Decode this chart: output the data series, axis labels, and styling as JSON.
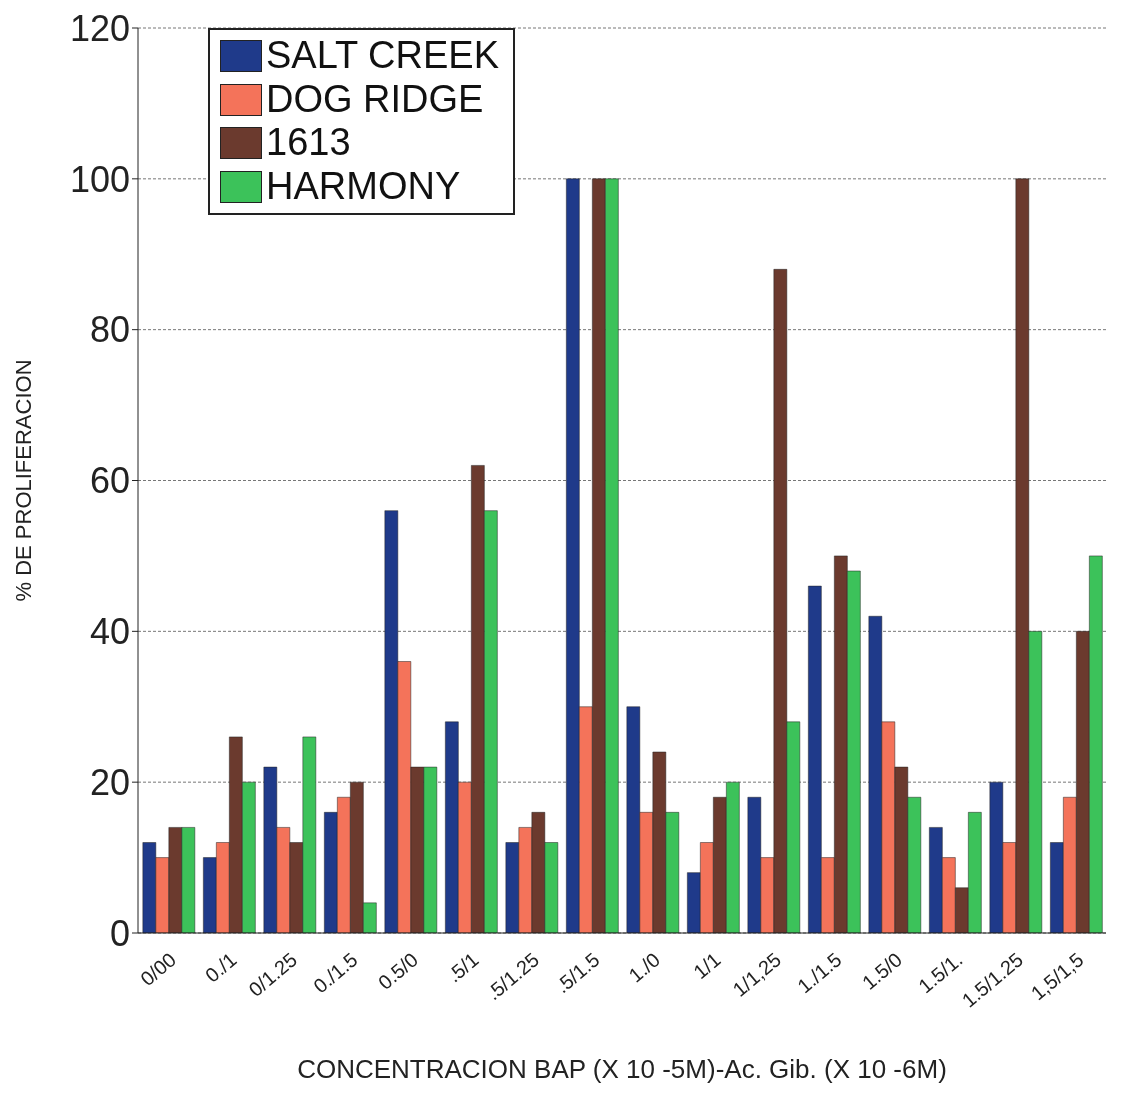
{
  "chart_data": {
    "type": "bar",
    "xlabel": "CONCENTRACION BAP (X 10 -5M)-Ac. Gib. (X 10 -6M)",
    "ylabel": "% DE PROLIFERACION",
    "categories": [
      "0/00",
      "0./1",
      "0/1.25",
      "0./1.5",
      "0.5/0",
      ".5/1",
      ".5/1.25",
      ".5/1.5",
      "1./0",
      "1/1",
      "1/1,25",
      "1./1.5",
      "1.5/0",
      "1.5/1.",
      "1.5/1.25",
      "1,5/1,5"
    ],
    "series": [
      {
        "name": "SALT CREEK",
        "color": "#1f3a8a",
        "values": [
          12,
          10,
          22,
          16,
          56,
          28,
          12,
          100,
          30,
          8,
          18,
          46,
          42,
          14,
          20,
          12
        ]
      },
      {
        "name": "DOG RIDGE",
        "color": "#f4735a",
        "values": [
          10,
          12,
          14,
          18,
          36,
          20,
          14,
          30,
          16,
          12,
          10,
          10,
          28,
          10,
          12,
          18
        ]
      },
      {
        "name": "1613",
        "color": "#6b3a2e",
        "values": [
          14,
          26,
          12,
          20,
          22,
          62,
          16,
          100,
          24,
          18,
          88,
          50,
          22,
          6,
          100,
          40
        ]
      },
      {
        "name": "HARMONY",
        "color": "#3cc25a",
        "values": [
          14,
          20,
          26,
          4,
          22,
          56,
          12,
          100,
          16,
          20,
          28,
          48,
          18,
          16,
          40,
          50
        ]
      }
    ],
    "ylim": [
      0,
      120
    ],
    "yticks": [
      0,
      20,
      40,
      60,
      80,
      100,
      120
    ],
    "grid": "y",
    "legend": "top left"
  }
}
